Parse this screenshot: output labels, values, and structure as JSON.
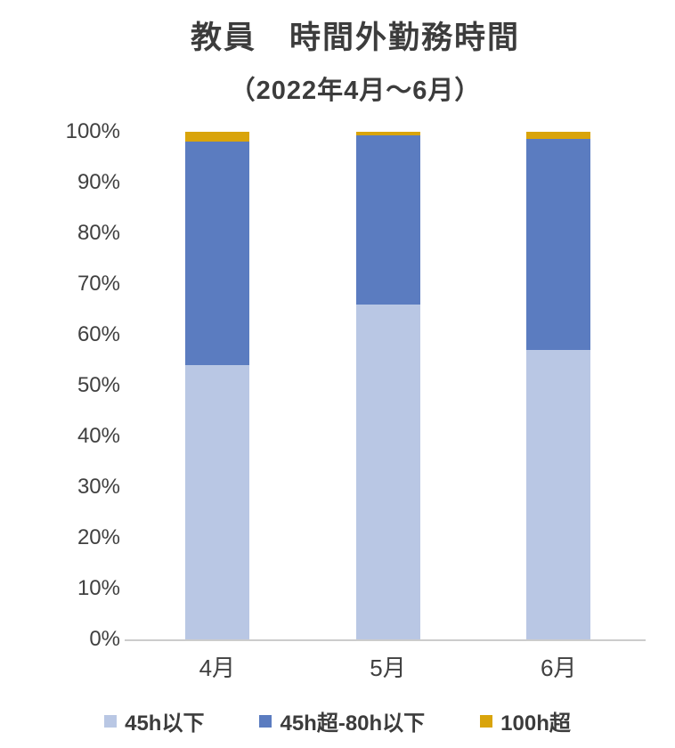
{
  "chart_data": {
    "type": "bar",
    "stacked": true,
    "percent_stacked": true,
    "title": "教員　時間外勤務時間",
    "subtitle": "（2022年4月～6月）",
    "categories": [
      "4月",
      "5月",
      "6月"
    ],
    "series": [
      {
        "name": "45h以下",
        "color": "#b9c7e4",
        "values": [
          54,
          66,
          57
        ]
      },
      {
        "name": "45h超-80h以下",
        "color": "#5b7cc0",
        "values": [
          44,
          33.3,
          41.6
        ]
      },
      {
        "name": "100h超",
        "color": "#d9a40b",
        "values": [
          2,
          0.7,
          1.4
        ]
      }
    ],
    "y_ticks": [
      "100%",
      "90%",
      "80%",
      "70%",
      "60%",
      "50%",
      "40%",
      "30%",
      "20%",
      "10%",
      "0%"
    ],
    "ylim": [
      0,
      100
    ],
    "xlabel": "",
    "ylabel": "",
    "grid": false,
    "legend_position": "bottom"
  }
}
